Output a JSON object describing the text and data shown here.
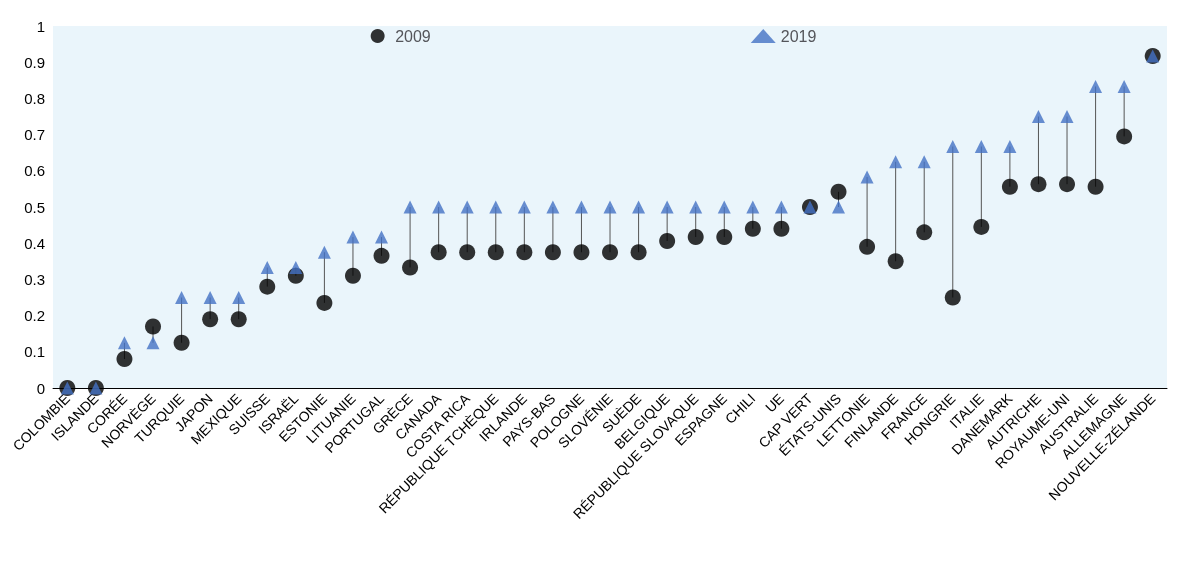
{
  "chart_data": {
    "type": "scatter",
    "categories": [
      "COLOMBIE",
      "ISLANDE",
      "CORÉE",
      "NORVÈGE",
      "TURQUIE",
      "JAPON",
      "MEXIQUE",
      "SUISSE",
      "ISRAËL",
      "ESTONIE",
      "LITUANIE",
      "PORTUGAL",
      "GRÈCE",
      "CANADA",
      "COSTA RICA",
      "RÉPUBLIQUE TCHÈQUE",
      "IRLANDE",
      "PAYS-BAS",
      "POLOGNE",
      "SLOVÉNIE",
      "SUÈDE",
      "BELGIQUE",
      "RÉPUBLIQUE SLOVAQUE",
      "ESPAGNE",
      "CHILI",
      "UE",
      "CAP VERT",
      "ÉTATS-UNIS",
      "LETTONIE",
      "FINLANDE",
      "FRANCE",
      "HONGRIE",
      "ITALIE",
      "DANEMARK",
      "AUTRICHE",
      "ROYAUME-UNI",
      "AUSTRALIE",
      "ALLEMAGNE",
      "NOUVELLE-ZÉLANDE"
    ],
    "series": [
      {
        "name": "2009",
        "color": "#000000",
        "marker": "circle",
        "values": [
          0,
          0,
          0.08,
          0.17,
          0.125,
          0.19,
          0.19,
          0.28,
          0.31,
          0.235,
          0.31,
          0.365,
          0.333,
          0.375,
          0.375,
          0.375,
          0.375,
          0.375,
          0.375,
          0.375,
          0.375,
          0.406,
          0.417,
          0.417,
          0.44,
          0.44,
          0.5,
          0.542,
          0.39,
          0.35,
          0.43,
          0.25,
          0.445,
          0.556,
          0.563,
          0.563,
          0.556,
          0.695,
          0.917
        ]
      },
      {
        "name": "2019",
        "color": "#4472c4",
        "marker": "triangle",
        "values": [
          0,
          0,
          0.125,
          0.125,
          0.25,
          0.25,
          0.25,
          0.333,
          0.333,
          0.375,
          0.417,
          0.417,
          0.5,
          0.5,
          0.5,
          0.5,
          0.5,
          0.5,
          0.5,
          0.5,
          0.5,
          0.5,
          0.5,
          0.5,
          0.5,
          0.5,
          0.5,
          0.5,
          0.583,
          0.625,
          0.625,
          0.667,
          0.667,
          0.667,
          0.75,
          0.75,
          0.833,
          0.833,
          0.917
        ]
      }
    ],
    "ylim": [
      0,
      1
    ],
    "yticks": [
      0,
      0.1,
      0.2,
      0.3,
      0.4,
      0.5,
      0.6,
      0.7,
      0.8,
      0.9,
      1
    ],
    "grid": false,
    "legend": "top"
  }
}
